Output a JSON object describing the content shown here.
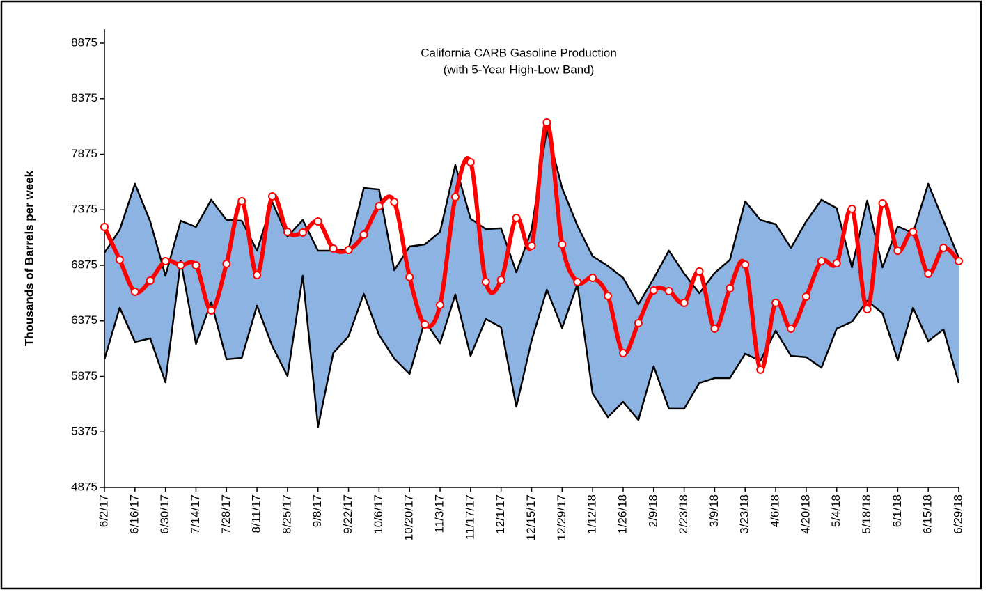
{
  "chart_data": {
    "type": "line",
    "title": "California CARB Gasoline Production",
    "subtitle": "(with 5-Year High-Low Band)",
    "y_label": "Thousands of Barrels per week",
    "categories": [
      "6/2/17",
      null,
      "6/16/17",
      null,
      "6/30/17",
      null,
      "7/14/17",
      null,
      "7/28/17",
      null,
      "8/11/17",
      null,
      "8/25/17",
      null,
      "9/8/17",
      null,
      "9/22/17",
      null,
      "10/6/17",
      null,
      "10/20/17",
      null,
      "11/3/17",
      null,
      "11/17/17",
      null,
      "12/1/17",
      null,
      "12/15/17",
      null,
      "12/29/17",
      null,
      "1/12/18",
      null,
      "1/26/18",
      null,
      "2/9/18",
      null,
      "2/23/18",
      null,
      "3/9/18",
      null,
      "3/23/18",
      null,
      "4/6/18",
      null,
      "4/20/18",
      null,
      "5/4/18",
      null,
      "5/18/18",
      null,
      "6/1/18",
      null,
      "6/15/18",
      null,
      "6/29/18"
    ],
    "band_color": "#8db3e2",
    "series": [
      {
        "color": "#000000",
        "values": [
          6988,
          7195,
          7609,
          7270,
          6781,
          7276,
          7220,
          7465,
          7283,
          7276,
          7007,
          7445,
          7132,
          7283,
          7007,
          7007,
          7019,
          7571,
          7558,
          6831,
          7044,
          7063,
          7176,
          7778,
          7295,
          7201,
          7208,
          6812,
          7195,
          8104,
          7571,
          7233,
          6957,
          6869,
          6762,
          6524,
          6756,
          7007,
          6800,
          6624,
          6806,
          6925,
          7452,
          7283,
          7245,
          7032,
          7270,
          7465,
          7389,
          6856,
          7458,
          6856,
          7226,
          7164,
          7609,
          7276,
          6944
        ]
      },
      {
        "color": "#000000",
        "values": [
          6029,
          6493,
          6185,
          6217,
          5822,
          6913,
          6167,
          6543,
          6029,
          6041,
          6512,
          6148,
          5878,
          6781,
          5420,
          6085,
          6236,
          6618,
          6248,
          6035,
          5897,
          6374,
          6173,
          6612,
          6060,
          6392,
          6317,
          5602,
          6198,
          6656,
          6311,
          6706,
          5721,
          5508,
          5646,
          5483,
          5966,
          5584,
          5584,
          5816,
          5859,
          5859,
          6079,
          6016,
          6286,
          6060,
          6048,
          5953,
          6305,
          6367,
          6555,
          6443,
          6022,
          6493,
          6192,
          6298,
          5816
        ]
      },
      {
        "color": "#ff0000",
        "values": [
          7220,
          6925,
          6637,
          6737,
          6913,
          6875,
          6875,
          6468,
          6888,
          7452,
          6787,
          7496,
          7176,
          7170,
          7270,
          7026,
          7013,
          7151,
          7408,
          7445,
          6769,
          6342,
          6518,
          7490,
          7803,
          6725,
          6743,
          7301,
          7051,
          8160,
          7063,
          6725,
          6762,
          6599,
          6085,
          6355,
          6649,
          6643,
          6537,
          6819,
          6305,
          6668,
          6881,
          5935,
          6537,
          6305,
          6593,
          6913,
          6894,
          7383,
          6480,
          7433,
          7007,
          7176,
          6800,
          7032,
          6913
        ]
      }
    ],
    "ylim": [
      4875,
      9000
    ],
    "yticks": [
      4875,
      5375,
      5875,
      6375,
      6875,
      7375,
      7875,
      8375,
      8875
    ]
  }
}
